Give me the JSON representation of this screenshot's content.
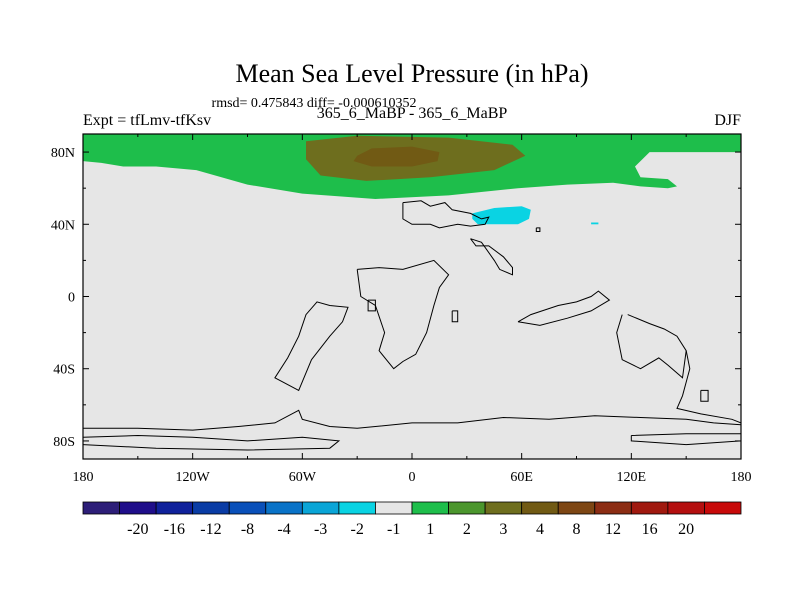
{
  "chart_data": {
    "type": "heatmap",
    "title": "Mean Sea Level Pressure (in hPa)",
    "subtitle": "rmsd= 0.475843 diff= -0.000610352",
    "left_label": "Expt = tfLmv-tfKsv",
    "center_label": "365_6_MaBP - 365_6_MaBP",
    "right_label": "DJF",
    "xlim": [
      -180,
      180
    ],
    "ylim": [
      -90,
      90
    ],
    "x_ticks": [
      {
        "value": -180,
        "label": "180"
      },
      {
        "value": -120,
        "label": "120W"
      },
      {
        "value": -60,
        "label": "60W"
      },
      {
        "value": 0,
        "label": "0"
      },
      {
        "value": 60,
        "label": "60E"
      },
      {
        "value": 120,
        "label": "120E"
      },
      {
        "value": 180,
        "label": "180"
      }
    ],
    "y_ticks": [
      {
        "value": 80,
        "label": "80N"
      },
      {
        "value": 40,
        "label": "40N"
      },
      {
        "value": 0,
        "label": "0"
      },
      {
        "value": -40,
        "label": "40S"
      },
      {
        "value": -80,
        "label": "80S"
      }
    ],
    "background_color": "#e6e6e6",
    "regions": [
      {
        "name": "positive-anomaly-1-2",
        "range": "1 to 2",
        "color": "#1ebe4b",
        "polygon": [
          [
            -180,
            90
          ],
          [
            180,
            90
          ],
          [
            180,
            80
          ],
          [
            165,
            80
          ],
          [
            130,
            80
          ],
          [
            122,
            72
          ],
          [
            125,
            66
          ],
          [
            140,
            65
          ],
          [
            145,
            61
          ],
          [
            140,
            60
          ],
          [
            125,
            61
          ],
          [
            110,
            63
          ],
          [
            85,
            62
          ],
          [
            58,
            60
          ],
          [
            20,
            56
          ],
          [
            -20,
            54
          ],
          [
            -60,
            57
          ],
          [
            -90,
            62
          ],
          [
            -118,
            70
          ],
          [
            -140,
            72
          ],
          [
            -158,
            72
          ],
          [
            -170,
            74
          ],
          [
            -180,
            75
          ]
        ]
      },
      {
        "name": "positive-anomaly-3-4",
        "range": "3 to 4",
        "color": "#6e6e1e",
        "polygon": [
          [
            -58,
            86
          ],
          [
            -30,
            89
          ],
          [
            20,
            88
          ],
          [
            55,
            84
          ],
          [
            62,
            78
          ],
          [
            45,
            70
          ],
          [
            10,
            66
          ],
          [
            -25,
            64
          ],
          [
            -50,
            67
          ],
          [
            -58,
            76
          ]
        ]
      },
      {
        "name": "positive-anomaly-4-8",
        "range": "4 to 8",
        "color": "#715a14",
        "polygon": [
          [
            -30,
            78
          ],
          [
            -22,
            82
          ],
          [
            0,
            83
          ],
          [
            15,
            80
          ],
          [
            14,
            75
          ],
          [
            0,
            72
          ],
          [
            -22,
            72
          ],
          [
            -32,
            75
          ]
        ]
      },
      {
        "name": "negative-anomaly-1-2",
        "range": "-2 to -1",
        "color": "#0ad3e3",
        "polygon": [
          [
            33,
            46
          ],
          [
            45,
            49
          ],
          [
            60,
            50
          ],
          [
            65,
            48
          ],
          [
            64,
            43
          ],
          [
            58,
            40
          ],
          [
            45,
            40
          ],
          [
            36,
            40
          ],
          [
            33,
            43
          ]
        ]
      },
      {
        "name": "negative-anomaly-1-2-small",
        "range": "-2 to -1",
        "color": "#0ad3e3",
        "polygon": [
          [
            98,
            41
          ],
          [
            102,
            41
          ],
          [
            102,
            40
          ],
          [
            98,
            40
          ]
        ]
      }
    ],
    "land_outlines": [
      {
        "name": "eurasia-coast",
        "points": [
          [
            -5,
            52
          ],
          [
            5,
            53
          ],
          [
            10,
            50
          ],
          [
            18,
            52
          ],
          [
            22,
            48
          ],
          [
            32,
            46
          ],
          [
            38,
            43
          ],
          [
            42,
            44
          ],
          [
            40,
            40
          ],
          [
            32,
            39
          ],
          [
            25,
            40
          ],
          [
            15,
            38
          ],
          [
            10,
            40
          ],
          [
            0,
            40
          ],
          [
            -5,
            43
          ],
          [
            -5,
            52
          ]
        ]
      },
      {
        "name": "middle-east-coast",
        "points": [
          [
            32,
            32
          ],
          [
            38,
            30
          ],
          [
            45,
            20
          ],
          [
            48,
            15
          ],
          [
            55,
            12
          ],
          [
            55,
            16
          ],
          [
            50,
            22
          ],
          [
            42,
            28
          ],
          [
            35,
            28
          ],
          [
            32,
            32
          ]
        ]
      },
      {
        "name": "africa-coast",
        "points": [
          [
            -30,
            15
          ],
          [
            -28,
            0
          ],
          [
            -20,
            -5
          ],
          [
            -15,
            -20
          ],
          [
            -18,
            -30
          ],
          [
            -10,
            -40
          ],
          [
            -5,
            -36
          ],
          [
            2,
            -32
          ],
          [
            8,
            -20
          ],
          [
            12,
            -5
          ],
          [
            15,
            5
          ],
          [
            20,
            12
          ],
          [
            12,
            20
          ],
          [
            -5,
            15
          ],
          [
            -18,
            16
          ],
          [
            -30,
            15
          ]
        ]
      },
      {
        "name": "south-asia-coast",
        "points": [
          [
            58,
            -14
          ],
          [
            65,
            -10
          ],
          [
            80,
            -5
          ],
          [
            90,
            -3
          ],
          [
            98,
            0
          ],
          [
            102,
            3
          ],
          [
            108,
            -2
          ],
          [
            98,
            -8
          ],
          [
            85,
            -12
          ],
          [
            70,
            -16
          ],
          [
            58,
            -14
          ]
        ]
      },
      {
        "name": "south-america-coast",
        "points": [
          [
            -55,
            -35
          ],
          [
            -45,
            -22
          ],
          [
            -38,
            -14
          ],
          [
            -35,
            -6
          ],
          [
            -45,
            -5
          ],
          [
            -52,
            -3
          ],
          [
            -58,
            -10
          ],
          [
            -62,
            -22
          ],
          [
            -68,
            -34
          ],
          [
            -75,
            -45
          ],
          [
            -62,
            -52
          ],
          [
            -55,
            -35
          ]
        ]
      },
      {
        "name": "australia-coast",
        "points": [
          [
            118,
            -10
          ],
          [
            130,
            -15
          ],
          [
            138,
            -18
          ],
          [
            145,
            -22
          ],
          [
            150,
            -30
          ],
          [
            152,
            -40
          ],
          [
            148,
            -55
          ],
          [
            145,
            -62
          ],
          [
            158,
            -65
          ],
          [
            175,
            -68
          ],
          [
            180,
            -70
          ]
        ]
      },
      {
        "name": "australia-inner-coast",
        "points": [
          [
            115,
            -10
          ],
          [
            112,
            -20
          ],
          [
            115,
            -35
          ],
          [
            125,
            -40
          ],
          [
            135,
            -34
          ],
          [
            140,
            -38
          ],
          [
            148,
            -45
          ],
          [
            150,
            -30
          ]
        ]
      },
      {
        "name": "antarctic-coast",
        "points": [
          [
            -180,
            -73
          ],
          [
            -150,
            -73
          ],
          [
            -120,
            -74
          ],
          [
            -95,
            -72
          ],
          [
            -75,
            -70
          ],
          [
            -62,
            -63
          ],
          [
            -60,
            -68
          ],
          [
            -45,
            -72
          ],
          [
            -30,
            -73
          ],
          [
            0,
            -70
          ],
          [
            25,
            -70
          ],
          [
            50,
            -67
          ],
          [
            75,
            -68
          ],
          [
            100,
            -66
          ],
          [
            125,
            -67
          ],
          [
            150,
            -68
          ],
          [
            165,
            -70
          ],
          [
            180,
            -71
          ]
        ]
      },
      {
        "name": "antarctic-interior-1",
        "points": [
          [
            -180,
            -78
          ],
          [
            -150,
            -77
          ],
          [
            -120,
            -78
          ],
          [
            -90,
            -80
          ],
          [
            -60,
            -78
          ],
          [
            -40,
            -80
          ],
          [
            -45,
            -84
          ],
          [
            -90,
            -85
          ],
          [
            -140,
            -84
          ],
          [
            -180,
            -82
          ]
        ]
      },
      {
        "name": "antarctic-interior-2",
        "points": [
          [
            120,
            -77
          ],
          [
            150,
            -76
          ],
          [
            180,
            -76
          ],
          [
            180,
            -80
          ],
          [
            150,
            -82
          ],
          [
            120,
            -80
          ],
          [
            120,
            -77
          ]
        ]
      },
      {
        "name": "small-island-1",
        "points": [
          [
            -24,
            -2
          ],
          [
            -20,
            -2
          ],
          [
            -20,
            -8
          ],
          [
            -24,
            -8
          ],
          [
            -24,
            -2
          ]
        ]
      },
      {
        "name": "small-island-2",
        "points": [
          [
            22,
            -8
          ],
          [
            25,
            -8
          ],
          [
            25,
            -14
          ],
          [
            22,
            -14
          ],
          [
            22,
            -8
          ]
        ]
      },
      {
        "name": "small-island-3",
        "points": [
          [
            158,
            -52
          ],
          [
            162,
            -52
          ],
          [
            162,
            -58
          ],
          [
            158,
            -58
          ],
          [
            158,
            -52
          ]
        ]
      },
      {
        "name": "small-island-4",
        "points": [
          [
            68,
            38
          ],
          [
            70,
            38
          ],
          [
            70,
            36
          ],
          [
            68,
            36
          ],
          [
            68,
            38
          ]
        ]
      }
    ],
    "colorbar": {
      "colors": [
        "#2d1e78",
        "#1f0e8a",
        "#10219b",
        "#0a3ca5",
        "#0a50b9",
        "#0a73c8",
        "#0aa5d7",
        "#0ad3e3",
        "#e6e6e6",
        "#1ebe4b",
        "#4b962d",
        "#6e6e1e",
        "#715a14",
        "#7d4614",
        "#8c2d14",
        "#a0190f",
        "#b40f0f",
        "#c80a0a"
      ],
      "labels": [
        "-20",
        "-16",
        "-12",
        "-8",
        "-4",
        "-3",
        "-2",
        "-1",
        "1",
        "2",
        "3",
        "4",
        "8",
        "12",
        "16",
        "20"
      ]
    }
  }
}
